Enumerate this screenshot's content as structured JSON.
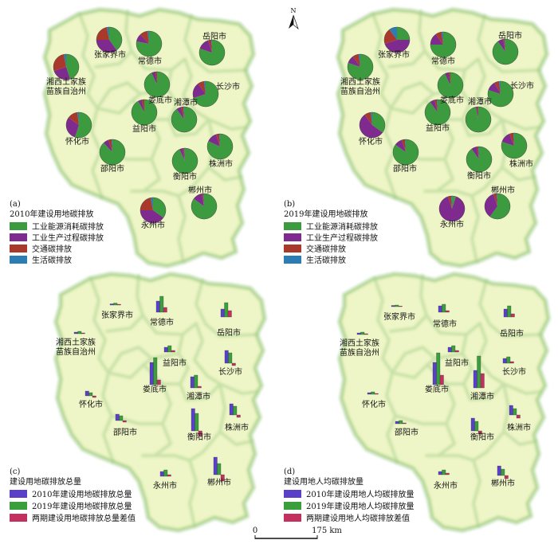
{
  "north_arrow": {
    "label": "N"
  },
  "scale_bar": {
    "start_label": "0",
    "end_label": "175 km"
  },
  "cities": {
    "zhangjiajie": "张家界市",
    "changde": "常德市",
    "yueyang": "岳阳市",
    "xiangxi": [
      "湘西土家族",
      "苗族自治州"
    ],
    "loudi": "娄底市",
    "changsha": "长沙市",
    "xiangtan": "湘潭市",
    "yiyang": "益阳市",
    "huaihua": "怀化市",
    "zhuzhou": "株洲市",
    "shaoyang": "邵阳市",
    "hengyang": "衡阳市",
    "chenzhou": "郴州市",
    "yongzhou": "永州市"
  },
  "chart_data": [
    {
      "type": "pie",
      "tag": "(a)",
      "title": "2010年建设用地碳排放",
      "categories": [
        "工业能源消耗碳排放",
        "工业生产过程碳排放",
        "交通碳排放",
        "生活碳排放"
      ],
      "colors": [
        "#3c9b3e",
        "#7e2a8e",
        "#a93a2b",
        "#2c7db3"
      ],
      "values": {
        "zhangjiajie": [
          0.4,
          0.35,
          0.22,
          0.03
        ],
        "changde": [
          0.78,
          0.1,
          0.1,
          0.02
        ],
        "yueyang": [
          0.8,
          0.15,
          0.04,
          0.01
        ],
        "xiangxi": [
          0.45,
          0.25,
          0.27,
          0.03
        ],
        "loudi": [
          0.93,
          0.05,
          0.02,
          0.0
        ],
        "changsha": [
          0.7,
          0.2,
          0.08,
          0.02
        ],
        "xiangtan": [
          0.9,
          0.06,
          0.03,
          0.01
        ],
        "yiyang": [
          0.92,
          0.05,
          0.03,
          0.0
        ],
        "huaihua": [
          0.55,
          0.3,
          0.13,
          0.02
        ],
        "zhuzhou": [
          0.82,
          0.13,
          0.04,
          0.01
        ],
        "shaoyang": [
          0.88,
          0.07,
          0.04,
          0.01
        ],
        "hengyang": [
          0.93,
          0.04,
          0.02,
          0.01
        ],
        "chenzhou": [
          0.85,
          0.12,
          0.02,
          0.01
        ],
        "yongzhou": [
          0.35,
          0.4,
          0.22,
          0.03
        ]
      }
    },
    {
      "type": "pie",
      "tag": "(b)",
      "title": "2019年建设用地碳排放",
      "categories": [
        "工业能源消耗碳排放",
        "工业生产过程碳排放",
        "交通碳排放",
        "生活碳排放"
      ],
      "colors": [
        "#3c9b3e",
        "#7e2a8e",
        "#a93a2b",
        "#2c7db3"
      ],
      "values": {
        "zhangjiajie": [
          0.25,
          0.45,
          0.2,
          0.1
        ],
        "changde": [
          0.75,
          0.15,
          0.08,
          0.02
        ],
        "yueyang": [
          0.9,
          0.07,
          0.02,
          0.01
        ],
        "xiangxi": [
          0.8,
          0.1,
          0.08,
          0.02
        ],
        "loudi": [
          0.93,
          0.05,
          0.02,
          0.0
        ],
        "changsha": [
          0.8,
          0.12,
          0.06,
          0.02
        ],
        "xiangtan": [
          0.97,
          0.02,
          0.01,
          0.0
        ],
        "yiyang": [
          0.9,
          0.06,
          0.03,
          0.01
        ],
        "huaihua": [
          0.35,
          0.55,
          0.08,
          0.02
        ],
        "zhuzhou": [
          0.8,
          0.14,
          0.05,
          0.01
        ],
        "shaoyang": [
          0.85,
          0.1,
          0.04,
          0.01
        ],
        "hengyang": [
          0.9,
          0.07,
          0.02,
          0.01
        ],
        "chenzhou": [
          0.6,
          0.35,
          0.04,
          0.01
        ],
        "yongzhou": [
          0.05,
          0.9,
          0.04,
          0.01
        ]
      }
    },
    {
      "type": "bar",
      "tag": "(c)",
      "title": "建设用地碳排放总量",
      "series": [
        "2010年建设用地碳排放总量",
        "2019年建设用地碳排放总量",
        "两期建设用地碳排放总量差值"
      ],
      "colors": [
        "#5a3fc9",
        "#3a9e3c",
        "#c3305f"
      ],
      "values": {
        "zhangjiajie": [
          1.5,
          2.5,
          1.0
        ],
        "changde": [
          14,
          20,
          6
        ],
        "yueyang": [
          10,
          18,
          8
        ],
        "xiangxi": [
          2,
          3,
          1
        ],
        "yiyang": [
          6,
          8,
          2
        ],
        "loudi": [
          28,
          34,
          6
        ],
        "changsha": [
          16,
          13,
          -3
        ],
        "xiangtan": [
          14,
          16,
          2
        ],
        "huaihua": [
          6,
          4,
          -2
        ],
        "zhuzhou": [
          14,
          11,
          -3
        ],
        "shaoyang": [
          8,
          6,
          -2
        ],
        "hengyang": [
          28,
          22,
          -6
        ],
        "yongzhou": [
          6,
          8,
          2
        ],
        "chenzhou": [
          22,
          14,
          -8
        ]
      }
    },
    {
      "type": "bar",
      "tag": "(d)",
      "title": "建设用地人均碳排放量",
      "series": [
        "2010年建设用地人均碳排放量",
        "2019年建设用地人均碳排放量",
        "两期建设用地人均碳排放差值"
      ],
      "colors": [
        "#5a3fc9",
        "#3a9e3c",
        "#c3305f"
      ],
      "values": {
        "zhangjiajie": [
          1.5,
          2,
          0.5
        ],
        "changde": [
          8,
          10,
          2
        ],
        "yueyang": [
          10,
          14,
          4
        ],
        "xiangxi": [
          2,
          3,
          1
        ],
        "yiyang": [
          6,
          8,
          2
        ],
        "loudi": [
          28,
          40,
          12
        ],
        "changsha": [
          6,
          8,
          2
        ],
        "xiangtan": [
          22,
          40,
          18
        ],
        "huaihua": [
          2,
          3,
          1
        ],
        "zhuzhou": [
          12,
          8,
          -4
        ],
        "shaoyang": [
          3,
          4,
          1
        ],
        "hengyang": [
          16,
          12,
          -4
        ],
        "yongzhou": [
          4,
          6,
          2
        ],
        "chenzhou": [
          12,
          8,
          -4
        ]
      }
    }
  ]
}
